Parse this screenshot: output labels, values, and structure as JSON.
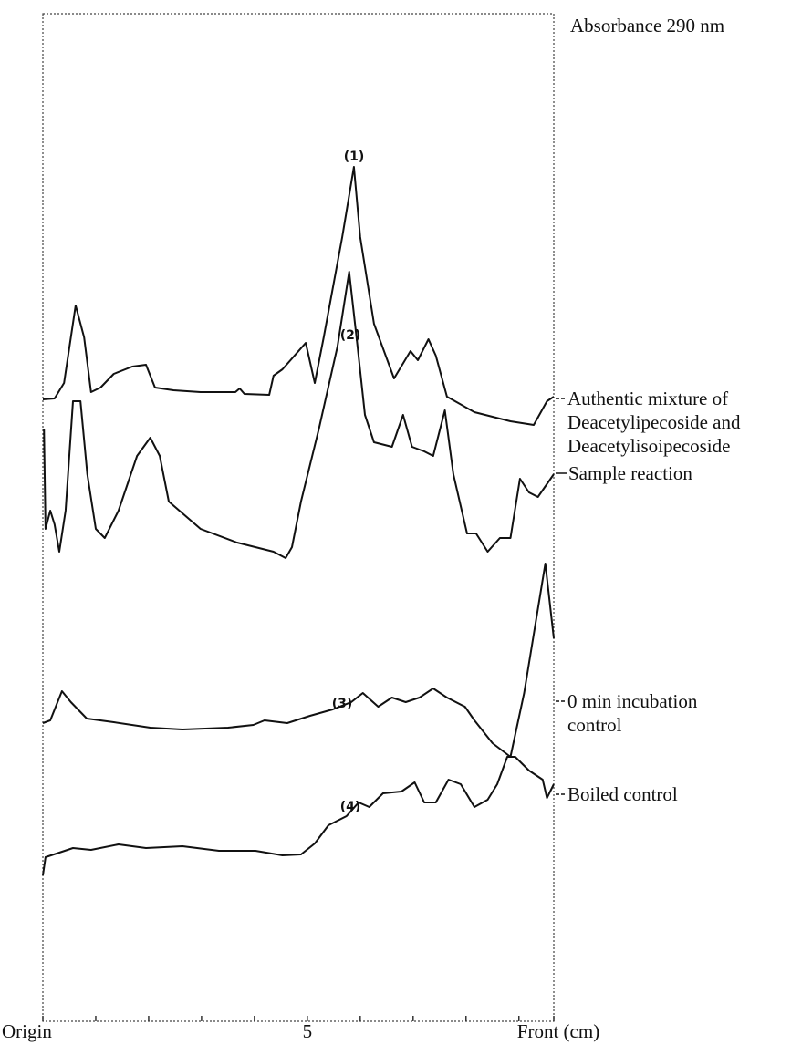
{
  "chart_data": {
    "type": "line",
    "title": "Absorbance 290 nm",
    "xlim": [
      0,
      9.66
    ],
    "ylim": [
      0,
      1105
    ],
    "xticks": [
      {
        "value": 0,
        "label": "Origin"
      },
      5,
      {
        "value": 9.66,
        "label": "Front (cm)"
      }
    ],
    "minor_xticks": [
      1,
      2,
      3,
      4,
      6,
      7,
      8,
      9
    ],
    "annotations": [
      "(1)",
      "(2)",
      "(3)",
      "(4)"
    ],
    "series": [
      {
        "name": "Authentic mixture of Deacetylipecoside and Deacetylisoipecoside",
        "color": "#111111",
        "x": [
          0,
          0.22,
          0.4,
          0.62,
          0.78,
          0.91,
          1.09,
          1.34,
          1.69,
          1.95,
          2.12,
          2.47,
          2.98,
          3.64,
          3.72,
          3.81,
          4.28,
          4.36,
          4.53,
          4.97,
          5.14,
          5.31,
          5.66,
          5.88,
          6.0,
          6.26,
          6.64,
          6.95,
          7.09,
          7.29,
          7.43,
          7.64,
          8.16,
          8.84,
          9.28,
          9.53,
          9.66
        ],
        "values": [
          682,
          683,
          700,
          785,
          750,
          690,
          695,
          710,
          718,
          720,
          695,
          692,
          690,
          690,
          694,
          688,
          687,
          708,
          715,
          744,
          700,
          750,
          860,
          937,
          860,
          765,
          705,
          735,
          725,
          748,
          730,
          685,
          668,
          658,
          654,
          680,
          685
        ]
      },
      {
        "name": "Sample reaction",
        "color": "#111111",
        "x": [
          0.02,
          0.05,
          0.14,
          0.22,
          0.31,
          0.43,
          0.57,
          0.71,
          0.84,
          1.0,
          1.17,
          1.43,
          1.78,
          2.03,
          2.21,
          2.38,
          2.98,
          3.67,
          4.36,
          4.59,
          4.71,
          4.88,
          5.22,
          5.57,
          5.79,
          5.95,
          6.09,
          6.26,
          6.6,
          6.81,
          6.98,
          7.21,
          7.38,
          7.6,
          7.76,
          8.02,
          8.19,
          8.41,
          8.64,
          8.84,
          9.02,
          9.19,
          9.36,
          9.66
        ],
        "values": [
          650,
          540,
          560,
          545,
          515,
          560,
          680,
          680,
          600,
          540,
          530,
          560,
          620,
          640,
          620,
          570,
          540,
          525,
          515,
          508,
          520,
          570,
          650,
          740,
          822,
          740,
          665,
          635,
          630,
          665,
          630,
          625,
          620,
          670,
          600,
          535,
          535,
          515,
          530,
          530,
          595,
          580,
          575,
          600
        ]
      },
      {
        "name": "0 min incubation control",
        "color": "#111111",
        "x": [
          0,
          0.14,
          0.36,
          0.53,
          0.83,
          1.34,
          2.03,
          2.64,
          3.5,
          3.98,
          4.19,
          4.62,
          5.05,
          5.48,
          5.83,
          6.05,
          6.34,
          6.6,
          6.86,
          7.12,
          7.38,
          7.64,
          7.98,
          8.16,
          8.5,
          8.84,
          9.1,
          9.5,
          9.66
        ],
        "values": [
          327,
          330,
          362,
          350,
          332,
          328,
          322,
          320,
          322,
          325,
          330,
          327,
          335,
          342,
          350,
          360,
          345,
          355,
          350,
          355,
          365,
          355,
          345,
          330,
          305,
          290,
          360,
          502,
          420
        ]
      },
      {
        "name": "Boiled control",
        "color": "#111111",
        "x": [
          0,
          0.05,
          0.31,
          0.57,
          0.91,
          1.43,
          1.95,
          2.64,
          3.33,
          4.02,
          4.53,
          4.88,
          5.14,
          5.4,
          5.74,
          5.97,
          6.17,
          6.43,
          6.78,
          7.03,
          7.21,
          7.43,
          7.67,
          7.9,
          8.16,
          8.41,
          8.59,
          8.78,
          8.93,
          9.19,
          9.45,
          9.53,
          9.66
        ],
        "values": [
          160,
          180,
          185,
          190,
          188,
          194,
          190,
          192,
          187,
          187,
          182,
          183,
          195,
          215,
          225,
          240,
          235,
          250,
          252,
          262,
          240,
          240,
          265,
          260,
          235,
          243,
          260,
          290,
          290,
          275,
          265,
          245,
          260
        ]
      }
    ]
  }
}
